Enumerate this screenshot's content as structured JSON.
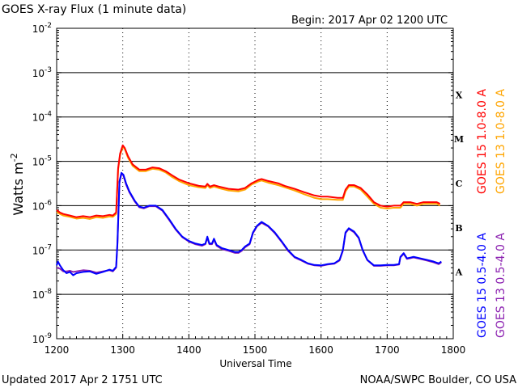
{
  "header": {
    "title": "GOES X-ray Flux (1 minute data)",
    "begin": "Begin: 2017 Apr 02 1200 UTC"
  },
  "footer": {
    "updated": "Updated 2017 Apr  2 1751 UTC",
    "credit": "NOAA/SWPC Boulder, CO USA"
  },
  "colors": {
    "goes15_long": "#ff0000",
    "goes13_long": "#ffa500",
    "goes15_short": "#0000ff",
    "goes13_short": "#8b20b0",
    "axes": "#000000"
  },
  "chart_data": {
    "type": "line",
    "title": "GOES X-ray Flux (1 minute data)",
    "xlabel": "Universal Time",
    "ylabel": "Watts m",
    "ylabel_exp": "-2",
    "xlim": [
      1200,
      1800
    ],
    "x_ticks": [
      "1200",
      "1300",
      "1400",
      "1500",
      "1600",
      "1700",
      "1800"
    ],
    "ylim_exp": [
      -9,
      -2
    ],
    "y_scale": "log",
    "y_ticks_exp": [
      "-2",
      "-3",
      "-4",
      "-5",
      "-6",
      "-7",
      "-8",
      "-9"
    ],
    "y_tick_base": "10",
    "flare_classes": [
      "X",
      "M",
      "C",
      "B",
      "A"
    ],
    "grid": "horizontal lines at each decade; dashed vertical lines each hour",
    "legend_placement": "right, rotated vertical",
    "series": [
      {
        "name": "GOES 15 1.0-8.0 A",
        "color": "#ff0000",
        "points": [
          [
            1200,
            8e-07
          ],
          [
            1205,
            7e-07
          ],
          [
            1210,
            6.5e-07
          ],
          [
            1220,
            6e-07
          ],
          [
            1230,
            5.5e-07
          ],
          [
            1240,
            5.8e-07
          ],
          [
            1250,
            5.5e-07
          ],
          [
            1260,
            6e-07
          ],
          [
            1270,
            5.8e-07
          ],
          [
            1280,
            6.2e-07
          ],
          [
            1285,
            6e-07
          ],
          [
            1290,
            7e-07
          ],
          [
            1293,
            7e-06
          ],
          [
            1296,
            1.5e-05
          ],
          [
            1300,
            2.3e-05
          ],
          [
            1303,
            2e-05
          ],
          [
            1308,
            1.3e-05
          ],
          [
            1315,
            8.5e-06
          ],
          [
            1325,
            6.5e-06
          ],
          [
            1335,
            6.5e-06
          ],
          [
            1345,
            7.3e-06
          ],
          [
            1355,
            7e-06
          ],
          [
            1365,
            6e-06
          ],
          [
            1375,
            4.8e-06
          ],
          [
            1385,
            3.9e-06
          ],
          [
            1400,
            3.2e-06
          ],
          [
            1415,
            2.8e-06
          ],
          [
            1425,
            2.7e-06
          ],
          [
            1428,
            3.1e-06
          ],
          [
            1432,
            2.7e-06
          ],
          [
            1438,
            2.9e-06
          ],
          [
            1445,
            2.7e-06
          ],
          [
            1460,
            2.4e-06
          ],
          [
            1475,
            2.3e-06
          ],
          [
            1485,
            2.5e-06
          ],
          [
            1495,
            3.2e-06
          ],
          [
            1505,
            3.8e-06
          ],
          [
            1510,
            4e-06
          ],
          [
            1520,
            3.6e-06
          ],
          [
            1535,
            3.2e-06
          ],
          [
            1545,
            2.8e-06
          ],
          [
            1560,
            2.4e-06
          ],
          [
            1575,
            2e-06
          ],
          [
            1590,
            1.7e-06
          ],
          [
            1600,
            1.6e-06
          ],
          [
            1610,
            1.6e-06
          ],
          [
            1625,
            1.5e-06
          ],
          [
            1633,
            1.5e-06
          ],
          [
            1637,
            2.3e-06
          ],
          [
            1642,
            2.9e-06
          ],
          [
            1650,
            2.9e-06
          ],
          [
            1660,
            2.5e-06
          ],
          [
            1670,
            1.8e-06
          ],
          [
            1680,
            1.2e-06
          ],
          [
            1690,
            1e-06
          ],
          [
            1700,
            9.5e-07
          ],
          [
            1710,
            1e-06
          ],
          [
            1720,
            1e-06
          ],
          [
            1725,
            1.2e-06
          ],
          [
            1735,
            1.2e-06
          ],
          [
            1745,
            1.1e-06
          ],
          [
            1755,
            1.2e-06
          ],
          [
            1765,
            1.2e-06
          ],
          [
            1775,
            1.2e-06
          ],
          [
            1780,
            1.1e-06
          ]
        ]
      },
      {
        "name": "GOES 13 1.0-8.0 A",
        "color": "#ffa500",
        "points": [
          [
            1200,
            7.2e-07
          ],
          [
            1205,
            6.5e-07
          ],
          [
            1210,
            6e-07
          ],
          [
            1220,
            5.6e-07
          ],
          [
            1230,
            5.1e-07
          ],
          [
            1240,
            5.3e-07
          ],
          [
            1250,
            5e-07
          ],
          [
            1260,
            5.5e-07
          ],
          [
            1270,
            5.3e-07
          ],
          [
            1280,
            5.7e-07
          ],
          [
            1285,
            5.6e-07
          ],
          [
            1290,
            6.5e-07
          ],
          [
            1293,
            6.5e-06
          ],
          [
            1296,
            1.4e-05
          ],
          [
            1300,
            2.1e-05
          ],
          [
            1303,
            1.9e-05
          ],
          [
            1308,
            1.2e-05
          ],
          [
            1315,
            7.9e-06
          ],
          [
            1325,
            6e-06
          ],
          [
            1335,
            6e-06
          ],
          [
            1345,
            6.8e-06
          ],
          [
            1355,
            6.5e-06
          ],
          [
            1365,
            5.6e-06
          ],
          [
            1375,
            4.4e-06
          ],
          [
            1385,
            3.6e-06
          ],
          [
            1400,
            2.9e-06
          ],
          [
            1415,
            2.6e-06
          ],
          [
            1425,
            2.5e-06
          ],
          [
            1428,
            2.9e-06
          ],
          [
            1432,
            2.5e-06
          ],
          [
            1438,
            2.7e-06
          ],
          [
            1445,
            2.5e-06
          ],
          [
            1460,
            2.2e-06
          ],
          [
            1475,
            2.1e-06
          ],
          [
            1485,
            2.3e-06
          ],
          [
            1495,
            3e-06
          ],
          [
            1505,
            3.5e-06
          ],
          [
            1510,
            3.7e-06
          ],
          [
            1520,
            3.3e-06
          ],
          [
            1535,
            2.9e-06
          ],
          [
            1545,
            2.6e-06
          ],
          [
            1560,
            2.2e-06
          ],
          [
            1575,
            1.8e-06
          ],
          [
            1590,
            1.5e-06
          ],
          [
            1600,
            1.4e-06
          ],
          [
            1610,
            1.4e-06
          ],
          [
            1625,
            1.35e-06
          ],
          [
            1633,
            1.35e-06
          ],
          [
            1637,
            2.1e-06
          ],
          [
            1642,
            2.7e-06
          ],
          [
            1650,
            2.7e-06
          ],
          [
            1660,
            2.3e-06
          ],
          [
            1670,
            1.6e-06
          ],
          [
            1680,
            1.1e-06
          ],
          [
            1690,
            9e-07
          ],
          [
            1700,
            8.6e-07
          ],
          [
            1710,
            9e-07
          ],
          [
            1720,
            9e-07
          ],
          [
            1725,
            1.1e-06
          ],
          [
            1735,
            1.1e-06
          ],
          [
            1745,
            1e-06
          ],
          [
            1755,
            1.1e-06
          ],
          [
            1765,
            1.1e-06
          ],
          [
            1775,
            1.1e-06
          ],
          [
            1780,
            1e-06
          ]
        ]
      },
      {
        "name": "GOES 15 0.5-4.0 A",
        "color": "#0000ff",
        "points": [
          [
            1200,
            4.5e-08
          ],
          [
            1202,
            5.5e-08
          ],
          [
            1205,
            4.5e-08
          ],
          [
            1210,
            3.5e-08
          ],
          [
            1215,
            3e-08
          ],
          [
            1220,
            3.2e-08
          ],
          [
            1225,
            2.7e-08
          ],
          [
            1230,
            3e-08
          ],
          [
            1240,
            3.2e-08
          ],
          [
            1250,
            3.3e-08
          ],
          [
            1260,
            2.9e-08
          ],
          [
            1270,
            3.2e-08
          ],
          [
            1280,
            3.6e-08
          ],
          [
            1285,
            3.4e-08
          ],
          [
            1290,
            4.2e-08
          ],
          [
            1292,
            1.5e-07
          ],
          [
            1295,
            3.5e-06
          ],
          [
            1298,
            5.5e-06
          ],
          [
            1301,
            5e-06
          ],
          [
            1305,
            3.2e-06
          ],
          [
            1310,
            2.1e-06
          ],
          [
            1318,
            1.3e-06
          ],
          [
            1325,
            9.5e-07
          ],
          [
            1332,
            9e-07
          ],
          [
            1340,
            1e-06
          ],
          [
            1350,
            1e-06
          ],
          [
            1360,
            8e-07
          ],
          [
            1370,
            5e-07
          ],
          [
            1380,
            3e-07
          ],
          [
            1390,
            2e-07
          ],
          [
            1400,
            1.6e-07
          ],
          [
            1410,
            1.4e-07
          ],
          [
            1420,
            1.3e-07
          ],
          [
            1425,
            1.4e-07
          ],
          [
            1428,
            2e-07
          ],
          [
            1431,
            1.4e-07
          ],
          [
            1435,
            1.4e-07
          ],
          [
            1438,
            1.8e-07
          ],
          [
            1442,
            1.3e-07
          ],
          [
            1450,
            1.1e-07
          ],
          [
            1460,
            1e-07
          ],
          [
            1470,
            9e-08
          ],
          [
            1475,
            9e-08
          ],
          [
            1480,
            1e-07
          ],
          [
            1485,
            1.2e-07
          ],
          [
            1492,
            1.4e-07
          ],
          [
            1497,
            2.5e-07
          ],
          [
            1503,
            3.5e-07
          ],
          [
            1510,
            4.3e-07
          ],
          [
            1520,
            3.5e-07
          ],
          [
            1530,
            2.5e-07
          ],
          [
            1540,
            1.6e-07
          ],
          [
            1550,
            1e-07
          ],
          [
            1560,
            7e-08
          ],
          [
            1570,
            6e-08
          ],
          [
            1580,
            5e-08
          ],
          [
            1590,
            4.6e-08
          ],
          [
            1600,
            4.5e-08
          ],
          [
            1610,
            4.8e-08
          ],
          [
            1620,
            5e-08
          ],
          [
            1628,
            6e-08
          ],
          [
            1633,
            1e-07
          ],
          [
            1637,
            2.5e-07
          ],
          [
            1642,
            3.1e-07
          ],
          [
            1650,
            2.6e-07
          ],
          [
            1657,
            1.9e-07
          ],
          [
            1663,
            1e-07
          ],
          [
            1670,
            6e-08
          ],
          [
            1680,
            4.5e-08
          ],
          [
            1690,
            4.5e-08
          ],
          [
            1700,
            4.6e-08
          ],
          [
            1710,
            4.6e-08
          ],
          [
            1718,
            4.8e-08
          ],
          [
            1720,
            7e-08
          ],
          [
            1725,
            8.5e-08
          ],
          [
            1730,
            6.5e-08
          ],
          [
            1740,
            7e-08
          ],
          [
            1750,
            6.5e-08
          ],
          [
            1760,
            6e-08
          ],
          [
            1770,
            5.5e-08
          ],
          [
            1778,
            5e-08
          ],
          [
            1782,
            5.5e-08
          ]
        ]
      },
      {
        "name": "GOES 13 0.5-4.0 A",
        "color": "#8b20b0",
        "points": [
          [
            1200,
            4e-08
          ],
          [
            1205,
            3.8e-08
          ],
          [
            1210,
            3.3e-08
          ],
          [
            1215,
            3.3e-08
          ],
          [
            1220,
            3.4e-08
          ],
          [
            1225,
            3.2e-08
          ],
          [
            1230,
            3.3e-08
          ],
          [
            1240,
            3.5e-08
          ],
          [
            1250,
            3.4e-08
          ],
          [
            1260,
            3.1e-08
          ],
          [
            1270,
            3.3e-08
          ],
          [
            1280,
            3.5e-08
          ],
          [
            1285,
            3.3e-08
          ],
          [
            1290,
            4e-08
          ],
          [
            1292,
            1.4e-07
          ],
          [
            1295,
            3.3e-06
          ],
          [
            1298,
            5.2e-06
          ],
          [
            1301,
            4.8e-06
          ],
          [
            1305,
            3e-06
          ],
          [
            1310,
            2e-06
          ],
          [
            1318,
            1.25e-06
          ],
          [
            1325,
            9.2e-07
          ],
          [
            1332,
            8.7e-07
          ],
          [
            1340,
            9.7e-07
          ],
          [
            1350,
            9.7e-07
          ],
          [
            1360,
            7.7e-07
          ],
          [
            1370,
            4.8e-07
          ],
          [
            1380,
            2.9e-07
          ],
          [
            1390,
            1.95e-07
          ],
          [
            1400,
            1.55e-07
          ],
          [
            1410,
            1.35e-07
          ],
          [
            1420,
            1.25e-07
          ],
          [
            1425,
            1.35e-07
          ],
          [
            1428,
            1.9e-07
          ],
          [
            1431,
            1.35e-07
          ],
          [
            1435,
            1.35e-07
          ],
          [
            1438,
            1.7e-07
          ],
          [
            1442,
            1.25e-07
          ],
          [
            1450,
            1.05e-07
          ],
          [
            1460,
            9.6e-08
          ],
          [
            1470,
            8.6e-08
          ],
          [
            1475,
            8.6e-08
          ],
          [
            1480,
            9.6e-08
          ],
          [
            1485,
            1.15e-07
          ],
          [
            1492,
            1.35e-07
          ],
          [
            1497,
            2.4e-07
          ],
          [
            1503,
            3.4e-07
          ],
          [
            1510,
            4.1e-07
          ],
          [
            1520,
            3.4e-07
          ],
          [
            1530,
            2.4e-07
          ],
          [
            1540,
            1.55e-07
          ],
          [
            1550,
            9.6e-08
          ],
          [
            1560,
            6.8e-08
          ],
          [
            1570,
            5.8e-08
          ],
          [
            1580,
            4.9e-08
          ],
          [
            1590,
            4.5e-08
          ],
          [
            1600,
            4.4e-08
          ],
          [
            1610,
            4.7e-08
          ],
          [
            1620,
            4.9e-08
          ],
          [
            1628,
            5.8e-08
          ],
          [
            1633,
            9.6e-08
          ],
          [
            1637,
            2.4e-07
          ],
          [
            1642,
            3e-07
          ],
          [
            1650,
            2.5e-07
          ],
          [
            1657,
            1.85e-07
          ],
          [
            1663,
            9.8e-08
          ],
          [
            1670,
            5.9e-08
          ],
          [
            1680,
            4.4e-08
          ],
          [
            1690,
            4.4e-08
          ],
          [
            1700,
            4.5e-08
          ],
          [
            1710,
            4.5e-08
          ],
          [
            1718,
            4.7e-08
          ],
          [
            1720,
            6.8e-08
          ],
          [
            1725,
            8.2e-08
          ],
          [
            1730,
            6.3e-08
          ],
          [
            1740,
            6.8e-08
          ],
          [
            1750,
            6.3e-08
          ],
          [
            1760,
            5.8e-08
          ],
          [
            1770,
            5.3e-08
          ],
          [
            1778,
            4.8e-08
          ],
          [
            1782,
            5.3e-08
          ]
        ]
      }
    ]
  }
}
